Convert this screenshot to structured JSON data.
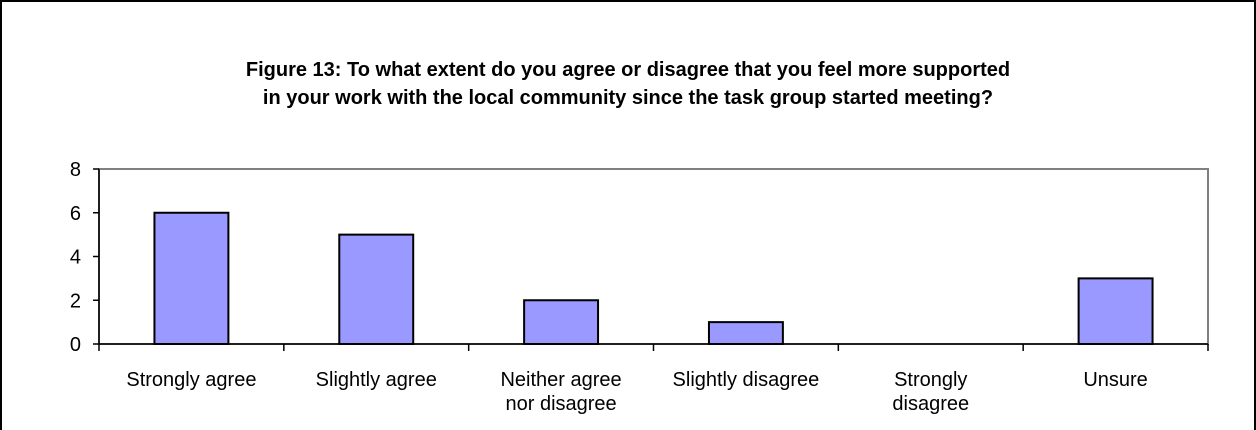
{
  "chart_data": {
    "type": "bar",
    "title": "Figure 13: To what extent do you agree or disagree that you feel more supported\nin your work with the local community since the task group started meeting?",
    "categories": [
      [
        "Strongly agree"
      ],
      [
        "Slightly agree"
      ],
      [
        "Neither agree",
        "nor disagree"
      ],
      [
        "Slightly disagree"
      ],
      [
        "Strongly",
        "disagree"
      ],
      [
        "Unsure"
      ]
    ],
    "values": [
      6,
      5,
      2,
      1,
      0,
      3
    ],
    "ylim": [
      0,
      8
    ],
    "yticks": [
      0,
      2,
      4,
      6,
      8
    ],
    "grid": false,
    "legend": "none",
    "colors": {
      "bar": "#9999ff",
      "bar_stroke": "#000000",
      "axis": "#000000",
      "plot_border": "#808080"
    }
  }
}
